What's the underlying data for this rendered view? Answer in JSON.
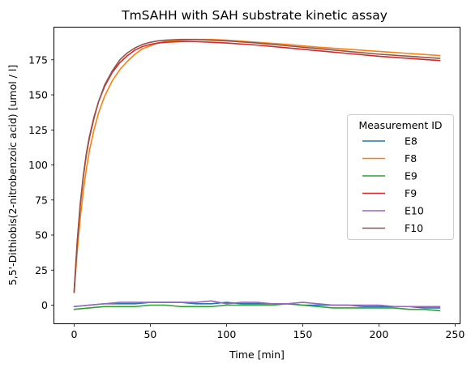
{
  "chart_data": {
    "type": "line",
    "title": "TmSAHH with SAH substrate kinetic assay",
    "xlabel": "Time [min]",
    "ylabel": "5,5'-Dithiobis(2-nitrobenzoic acid) [umol / l]",
    "xlim": [
      -13,
      253
    ],
    "ylim": [
      -13,
      198
    ],
    "xticks": [
      0,
      50,
      100,
      150,
      200,
      250
    ],
    "yticks": [
      0,
      25,
      50,
      75,
      100,
      125,
      150,
      175
    ],
    "grid": false,
    "legend": {
      "title": "Measurement ID",
      "placement": "center-right"
    },
    "series": [
      {
        "name": "E8",
        "color": "#1f77b4",
        "x": [
          0,
          10,
          20,
          30,
          40,
          50,
          60,
          70,
          80,
          90,
          100,
          110,
          120,
          130,
          140,
          150,
          160,
          170,
          180,
          190,
          200,
          210,
          220,
          230,
          240
        ],
        "y": [
          -1,
          0,
          1,
          1,
          1,
          2,
          2,
          2,
          1,
          1,
          2,
          1,
          1,
          1,
          1,
          0,
          0,
          0,
          0,
          -1,
          -1,
          -1,
          -1,
          -2,
          -2
        ]
      },
      {
        "name": "F8",
        "color": "#ff7f0e",
        "x": [
          0,
          2,
          4,
          6,
          8,
          10,
          13,
          16,
          20,
          25,
          30,
          35,
          40,
          45,
          50,
          55,
          60,
          70,
          80,
          90,
          100,
          120,
          140,
          160,
          180,
          200,
          220,
          240
        ],
        "y": [
          9,
          38,
          62,
          81,
          97,
          110,
          125,
          137,
          149,
          160,
          168,
          174,
          179,
          183,
          185,
          187,
          188,
          189,
          189.5,
          189.5,
          189,
          187.5,
          186,
          184,
          182.5,
          181,
          179.5,
          178
        ]
      },
      {
        "name": "E9",
        "color": "#2ca02c",
        "x": [
          0,
          10,
          20,
          30,
          40,
          50,
          60,
          70,
          80,
          90,
          100,
          110,
          120,
          130,
          140,
          150,
          160,
          170,
          180,
          190,
          200,
          210,
          220,
          230,
          240
        ],
        "y": [
          -3,
          -2,
          -1,
          -1,
          -1,
          0,
          0,
          -1,
          -1,
          -1,
          0,
          0,
          0,
          0,
          1,
          0,
          -1,
          -2,
          -2,
          -2,
          -2,
          -2,
          -3,
          -3,
          -4
        ]
      },
      {
        "name": "F9",
        "color": "#d62728",
        "x": [
          0,
          2,
          4,
          6,
          8,
          10,
          13,
          16,
          20,
          25,
          30,
          35,
          40,
          45,
          50,
          55,
          60,
          70,
          80,
          90,
          100,
          120,
          140,
          160,
          180,
          200,
          220,
          240
        ],
        "y": [
          10,
          45,
          72,
          92,
          108,
          120,
          134,
          145,
          156,
          166,
          173,
          178,
          182,
          184.5,
          186,
          187,
          187.5,
          188,
          188,
          187.5,
          187,
          185.5,
          183.5,
          181.5,
          179.5,
          177.5,
          176,
          174.5
        ]
      },
      {
        "name": "E10",
        "color": "#9467bd",
        "x": [
          0,
          10,
          20,
          30,
          40,
          50,
          60,
          70,
          80,
          90,
          100,
          110,
          120,
          130,
          140,
          150,
          160,
          170,
          180,
          190,
          200,
          210,
          220,
          230,
          240
        ],
        "y": [
          -1,
          0,
          1,
          2,
          2,
          2,
          2,
          2,
          2,
          3,
          1,
          2,
          2,
          1,
          1,
          2,
          1,
          0,
          0,
          0,
          0,
          -1,
          -1,
          -1,
          -1
        ]
      },
      {
        "name": "F10",
        "color": "#8c564b",
        "x": [
          0,
          2,
          4,
          6,
          8,
          10,
          13,
          16,
          20,
          25,
          30,
          35,
          40,
          45,
          50,
          55,
          60,
          70,
          80,
          90,
          100,
          120,
          140,
          160,
          180,
          200,
          220,
          240
        ],
        "y": [
          9,
          44,
          71,
          91,
          107,
          119,
          133,
          145,
          157,
          167,
          175,
          180,
          183.5,
          186,
          187.5,
          188.5,
          189,
          189.5,
          189.5,
          189,
          188.5,
          187,
          185,
          183,
          181,
          179,
          177.5,
          176
        ]
      }
    ]
  }
}
